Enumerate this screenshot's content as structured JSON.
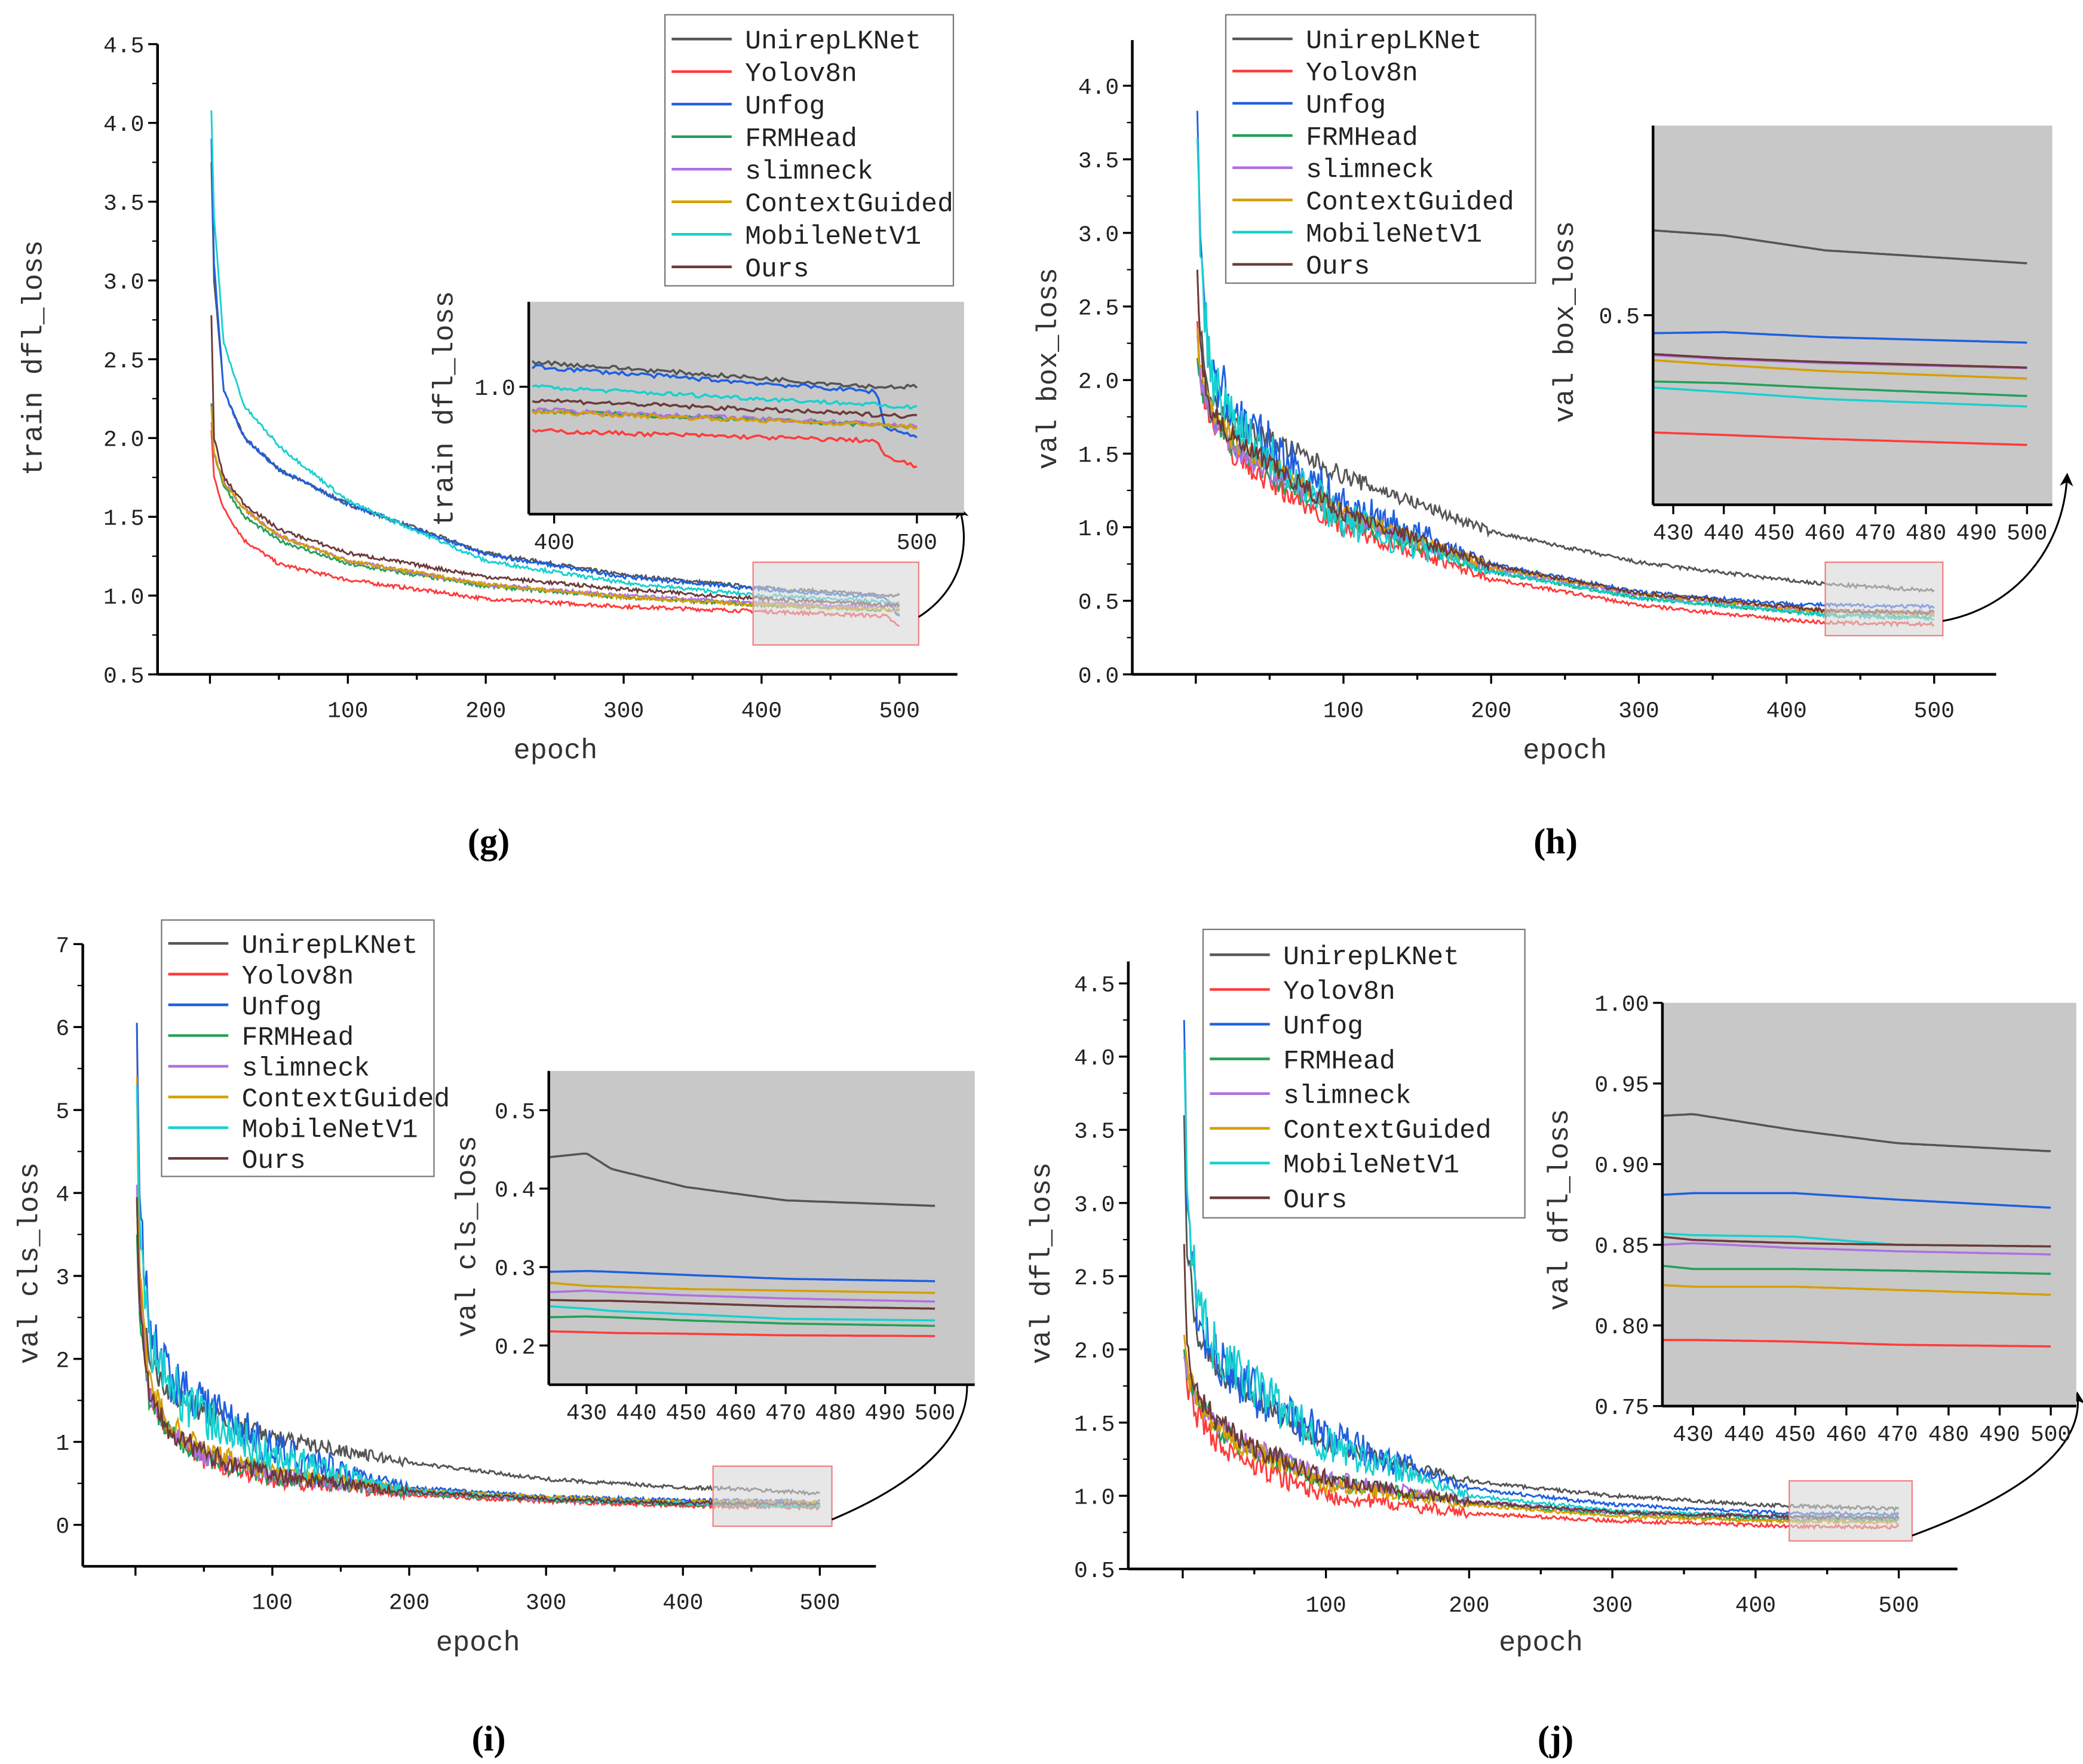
{
  "chart_data": [
    {
      "type": "line",
      "panel_label": "(g)",
      "xlabel": "epoch",
      "ylabel": "train dfl_loss",
      "xlim": [
        -38,
        542
      ],
      "ylim": [
        0.5,
        4.5
      ],
      "xticks": [
        "100",
        "200",
        "300",
        "400",
        "500"
      ],
      "yticks": [
        "0.5",
        "1.0",
        "1.5",
        "2.0",
        "2.5",
        "3.0",
        "3.5",
        "4.0",
        "4.5"
      ],
      "grid": false,
      "legend": {
        "position": "top-right"
      },
      "x": [
        1,
        3,
        10,
        25,
        50,
        100,
        200,
        300,
        400,
        490,
        500
      ],
      "series": [
        {
          "name": "UnirepLKNet",
          "color": "#555555",
          "values": [
            3.75,
            3.0,
            2.3,
            2.0,
            1.8,
            1.58,
            1.27,
            1.13,
            1.05,
            1.0,
            1.0
          ]
        },
        {
          "name": "Yolov8n",
          "color": "#ff3b3b",
          "values": [
            2.05,
            1.75,
            1.55,
            1.35,
            1.2,
            1.1,
            0.98,
            0.93,
            0.9,
            0.87,
            0.8
          ]
        },
        {
          "name": "Unfog",
          "color": "#1f5fe0",
          "values": [
            3.9,
            3.1,
            2.3,
            2.0,
            1.8,
            1.58,
            1.26,
            1.12,
            1.04,
            0.99,
            0.86
          ]
        },
        {
          "name": "FRMHead",
          "color": "#22a05a",
          "values": [
            2.22,
            1.9,
            1.7,
            1.5,
            1.35,
            1.2,
            1.06,
            0.99,
            0.94,
            0.91,
            0.91
          ]
        },
        {
          "name": "slimneck",
          "color": "#b070e0",
          "values": [
            2.1,
            1.9,
            1.72,
            1.55,
            1.38,
            1.22,
            1.07,
            1.0,
            0.95,
            0.93,
            0.93
          ]
        },
        {
          "name": "ContextGuided",
          "color": "#d4a000",
          "values": [
            2.2,
            1.9,
            1.72,
            1.55,
            1.38,
            1.22,
            1.07,
            0.99,
            0.94,
            0.91,
            0.91
          ]
        },
        {
          "name": "MobileNetV1",
          "color": "#18d0d0",
          "values": [
            4.08,
            3.4,
            2.6,
            2.2,
            1.95,
            1.6,
            1.22,
            1.08,
            1.0,
            0.96,
            0.95
          ]
        },
        {
          "name": "Ours",
          "color": "#6b3a3a",
          "values": [
            2.78,
            2.0,
            1.75,
            1.58,
            1.42,
            1.27,
            1.12,
            1.04,
            0.98,
            0.94,
            0.94
          ]
        }
      ],
      "inset": {
        "ylabel": "train dfl_loss",
        "xlim": [
          393,
          513
        ],
        "ylim": [
          0.8725,
          1.085
        ],
        "xticks": [
          "400",
          "500"
        ],
        "yticks": [
          "1.0"
        ],
        "x": [
          394,
          489,
          491,
          500
        ],
        "values": [
          [
            1.025,
            1.0,
            1.0,
            1.0
          ],
          [
            0.956,
            0.946,
            0.93,
            0.92
          ],
          [
            1.02,
            0.995,
            0.96,
            0.95
          ],
          [
            0.976,
            0.962,
            0.961,
            0.96
          ],
          [
            0.977,
            0.963,
            0.962,
            0.96
          ],
          [
            0.975,
            0.962,
            0.961,
            0.96
          ],
          [
            1.0,
            0.982,
            0.98,
            0.98
          ],
          [
            0.987,
            0.972,
            0.972,
            0.97
          ]
        ]
      }
    },
    {
      "type": "line",
      "panel_label": "(h)",
      "xlabel": "epoch",
      "ylabel": "val box_loss",
      "xlim": [
        -43,
        542
      ],
      "ylim": [
        0,
        4.31
      ],
      "xticks": [
        "100",
        "200",
        "300",
        "400",
        "500"
      ],
      "yticks": [
        "0.0",
        "0.5",
        "1.0",
        "1.5",
        "2.0",
        "2.5",
        "3.0",
        "3.5",
        "4.0"
      ],
      "grid": false,
      "legend": {
        "position": "top-left"
      },
      "x": [
        1,
        3,
        10,
        25,
        50,
        100,
        200,
        300,
        400,
        430,
        500
      ],
      "series": [
        {
          "name": "UnirepLKNet",
          "color": "#555555",
          "values": [
            2.75,
            2.3,
            1.9,
            1.7,
            1.6,
            1.35,
            0.97,
            0.76,
            0.64,
            0.61,
            0.57
          ]
        },
        {
          "name": "Yolov8n",
          "color": "#ff3b3b",
          "values": [
            2.4,
            2.0,
            1.75,
            1.5,
            1.3,
            1.0,
            0.65,
            0.47,
            0.37,
            0.35,
            0.34
          ]
        },
        {
          "name": "Unfog",
          "color": "#1f5fe0",
          "values": [
            3.83,
            2.9,
            2.1,
            1.8,
            1.55,
            1.15,
            0.75,
            0.56,
            0.48,
            0.47,
            0.46
          ]
        },
        {
          "name": "FRMHead",
          "color": "#22a05a",
          "values": [
            2.15,
            2.0,
            1.75,
            1.55,
            1.35,
            1.05,
            0.7,
            0.52,
            0.43,
            0.4,
            0.39
          ]
        },
        {
          "name": "slimneck",
          "color": "#b070e0",
          "values": [
            2.3,
            2.0,
            1.75,
            1.55,
            1.38,
            1.08,
            0.72,
            0.54,
            0.45,
            0.43,
            0.42
          ]
        },
        {
          "name": "ContextGuided",
          "color": "#d4a000",
          "values": [
            2.35,
            2.05,
            1.8,
            1.6,
            1.42,
            1.1,
            0.73,
            0.55,
            0.45,
            0.43,
            0.41
          ]
        },
        {
          "name": "MobileNetV1",
          "color": "#18d0d0",
          "values": [
            3.65,
            2.9,
            2.0,
            1.75,
            1.5,
            1.05,
            0.7,
            0.52,
            0.43,
            0.4,
            0.38
          ]
        },
        {
          "name": "Ours",
          "color": "#6b3a3a",
          "values": [
            2.75,
            2.2,
            1.8,
            1.6,
            1.42,
            1.1,
            0.74,
            0.55,
            0.46,
            0.43,
            0.42
          ]
        }
      ],
      "inset": {
        "ylabel": "val box_loss",
        "xlim": [
          426,
          505
        ],
        "ylim": [
          0.31,
          0.69
        ],
        "xticks": [
          "430",
          "440",
          "450",
          "460",
          "470",
          "480",
          "490",
          "500"
        ],
        "yticks": [
          "0.5"
        ],
        "x": [
          426,
          440,
          460,
          500
        ],
        "values": [
          [
            0.585,
            0.58,
            0.565,
            0.552
          ],
          [
            0.3825,
            0.38,
            0.376,
            0.37
          ],
          [
            0.482,
            0.483,
            0.478,
            0.4725
          ],
          [
            0.4335,
            0.432,
            0.427,
            0.419
          ],
          [
            0.46,
            0.456,
            0.452,
            0.447
          ],
          [
            0.455,
            0.45,
            0.444,
            0.4365
          ],
          [
            0.4275,
            0.423,
            0.416,
            0.4085
          ],
          [
            0.461,
            0.457,
            0.453,
            0.4475
          ]
        ]
      }
    },
    {
      "type": "line",
      "panel_label": "(i)",
      "xlabel": "epoch",
      "ylabel": "val cls_loss",
      "xlim": [
        -38.5,
        541
      ],
      "ylim": [
        -0.5,
        7
      ],
      "xticks": [
        "100",
        "200",
        "300",
        "400",
        "500"
      ],
      "yticks": [
        "0",
        "1",
        "2",
        "3",
        "4",
        "5",
        "6",
        "7"
      ],
      "grid": false,
      "legend": {
        "position": "top-left"
      },
      "x": [
        1,
        3,
        10,
        25,
        50,
        100,
        200,
        300,
        400,
        430,
        500
      ],
      "series": [
        {
          "name": "UnirepLKNet",
          "color": "#555555",
          "values": [
            3.9,
            3.0,
            2.0,
            1.6,
            1.35,
            1.05,
            0.75,
            0.55,
            0.45,
            0.44,
            0.38
          ]
        },
        {
          "name": "Yolov8n",
          "color": "#ff3b3b",
          "values": [
            6.05,
            3.0,
            1.6,
            1.1,
            0.8,
            0.55,
            0.36,
            0.28,
            0.23,
            0.22,
            0.21
          ]
        },
        {
          "name": "Unfog",
          "color": "#1f5fe0",
          "values": [
            6.05,
            4.0,
            2.3,
            1.8,
            1.5,
            0.9,
            0.45,
            0.34,
            0.3,
            0.295,
            0.28
          ]
        },
        {
          "name": "FRMHead",
          "color": "#22a05a",
          "values": [
            3.5,
            2.5,
            1.5,
            1.1,
            0.82,
            0.58,
            0.38,
            0.3,
            0.25,
            0.24,
            0.225
          ]
        },
        {
          "name": "slimneck",
          "color": "#b070e0",
          "values": [
            4.1,
            2.7,
            1.6,
            1.15,
            0.85,
            0.6,
            0.4,
            0.31,
            0.27,
            0.27,
            0.255
          ]
        },
        {
          "name": "ContextGuided",
          "color": "#d4a000",
          "values": [
            5.4,
            3.0,
            1.7,
            1.2,
            0.9,
            0.63,
            0.42,
            0.33,
            0.28,
            0.28,
            0.265
          ]
        },
        {
          "name": "MobileNetV1",
          "color": "#18d0d0",
          "values": [
            5.3,
            3.6,
            2.2,
            1.7,
            1.3,
            0.8,
            0.42,
            0.31,
            0.26,
            0.25,
            0.23
          ]
        },
        {
          "name": "Ours",
          "color": "#6b3a3a",
          "values": [
            3.95,
            2.7,
            1.6,
            1.15,
            0.85,
            0.6,
            0.4,
            0.31,
            0.26,
            0.26,
            0.245
          ]
        }
      ],
      "inset": {
        "ylabel": "val cls_loss",
        "xlim": [
          422.4,
          508
        ],
        "ylim": [
          0.15,
          0.55
        ],
        "xticks": [
          "430",
          "440",
          "450",
          "460",
          "470",
          "480",
          "490",
          "500"
        ],
        "yticks": [
          "0.2",
          "0.3",
          "0.4",
          "0.5"
        ],
        "x": [
          422.4,
          430,
          435,
          450,
          470,
          500
        ],
        "values": [
          [
            0.44,
            0.445,
            0.425,
            0.402,
            0.385,
            0.378
          ],
          [
            0.218,
            0.217,
            0.216,
            0.215,
            0.213,
            0.212
          ],
          [
            0.294,
            0.295,
            0.294,
            0.29,
            0.285,
            0.282
          ],
          [
            0.236,
            0.237,
            0.236,
            0.232,
            0.228,
            0.225
          ],
          [
            0.268,
            0.27,
            0.268,
            0.264,
            0.26,
            0.256
          ],
          [
            0.28,
            0.276,
            0.275,
            0.272,
            0.27,
            0.267
          ],
          [
            0.25,
            0.247,
            0.244,
            0.24,
            0.234,
            0.232
          ],
          [
            0.258,
            0.257,
            0.257,
            0.254,
            0.25,
            0.247
          ]
        ]
      }
    },
    {
      "type": "line",
      "panel_label": "(j)",
      "xlabel": "epoch",
      "ylabel": "val dfl_loss",
      "xlim": [
        -38,
        541
      ],
      "ylim": [
        0.5,
        4.65
      ],
      "xticks": [
        "100",
        "200",
        "300",
        "400",
        "500"
      ],
      "yticks": [
        "0.5",
        "1.0",
        "1.5",
        "2.0",
        "2.5",
        "3.0",
        "3.5",
        "4.0",
        "4.5"
      ],
      "grid": false,
      "legend": {
        "position": "top-left"
      },
      "x": [
        1,
        3,
        10,
        25,
        50,
        100,
        200,
        300,
        400,
        430,
        500
      ],
      "series": [
        {
          "name": "UnirepLKNet",
          "color": "#555555",
          "values": [
            3.6,
            2.7,
            2.1,
            1.85,
            1.65,
            1.35,
            1.1,
            1.0,
            0.94,
            0.93,
            0.91
          ]
        },
        {
          "name": "Yolov8n",
          "color": "#ff3b3b",
          "values": [
            2.0,
            1.75,
            1.55,
            1.35,
            1.2,
            1.0,
            0.88,
            0.83,
            0.8,
            0.79,
            0.787
          ]
        },
        {
          "name": "Unfog",
          "color": "#1f5fe0",
          "values": [
            4.25,
            3.0,
            2.2,
            1.9,
            1.7,
            1.4,
            1.05,
            0.94,
            0.89,
            0.88,
            0.873
          ]
        },
        {
          "name": "FRMHead",
          "color": "#22a05a",
          "values": [
            2.0,
            1.85,
            1.65,
            1.45,
            1.3,
            1.1,
            0.95,
            0.88,
            0.84,
            0.837,
            0.832
          ]
        },
        {
          "name": "slimneck",
          "color": "#b070e0",
          "values": [
            1.95,
            1.8,
            1.65,
            1.48,
            1.32,
            1.12,
            0.96,
            0.89,
            0.86,
            0.85,
            0.844
          ]
        },
        {
          "name": "ContextGuided",
          "color": "#d4a000",
          "values": [
            2.1,
            1.85,
            1.65,
            1.45,
            1.3,
            1.08,
            0.94,
            0.86,
            0.83,
            0.825,
            0.819
          ]
        },
        {
          "name": "MobileNetV1",
          "color": "#18d0d0",
          "values": [
            4.05,
            3.1,
            2.3,
            1.95,
            1.75,
            1.35,
            1.0,
            0.9,
            0.86,
            0.857,
            0.849
          ]
        },
        {
          "name": "Ours",
          "color": "#6b3a3a",
          "values": [
            2.72,
            2.0,
            1.7,
            1.5,
            1.33,
            1.12,
            0.96,
            0.89,
            0.86,
            0.855,
            0.849
          ]
        }
      ],
      "inset": {
        "ylabel": "val dfl_loss",
        "xlim": [
          424,
          505
        ],
        "ylim": [
          0.75,
          1.0
        ],
        "xticks": [
          "430",
          "440",
          "450",
          "460",
          "470",
          "480",
          "490",
          "500"
        ],
        "yticks": [
          "0.75",
          "0.80",
          "0.85",
          "0.90",
          "0.95",
          "1.00"
        ],
        "x": [
          424,
          430,
          450,
          470,
          500
        ],
        "values": [
          [
            0.93,
            0.931,
            0.921,
            0.913,
            0.908
          ],
          [
            0.791,
            0.791,
            0.79,
            0.788,
            0.787
          ],
          [
            0.881,
            0.882,
            0.882,
            0.878,
            0.873
          ],
          [
            0.837,
            0.835,
            0.835,
            0.834,
            0.832
          ],
          [
            0.85,
            0.851,
            0.848,
            0.846,
            0.844
          ],
          [
            0.825,
            0.824,
            0.824,
            0.822,
            0.819
          ],
          [
            0.857,
            0.856,
            0.855,
            0.85,
            0.849
          ],
          [
            0.855,
            0.853,
            0.851,
            0.85,
            0.849
          ]
        ]
      }
    }
  ]
}
